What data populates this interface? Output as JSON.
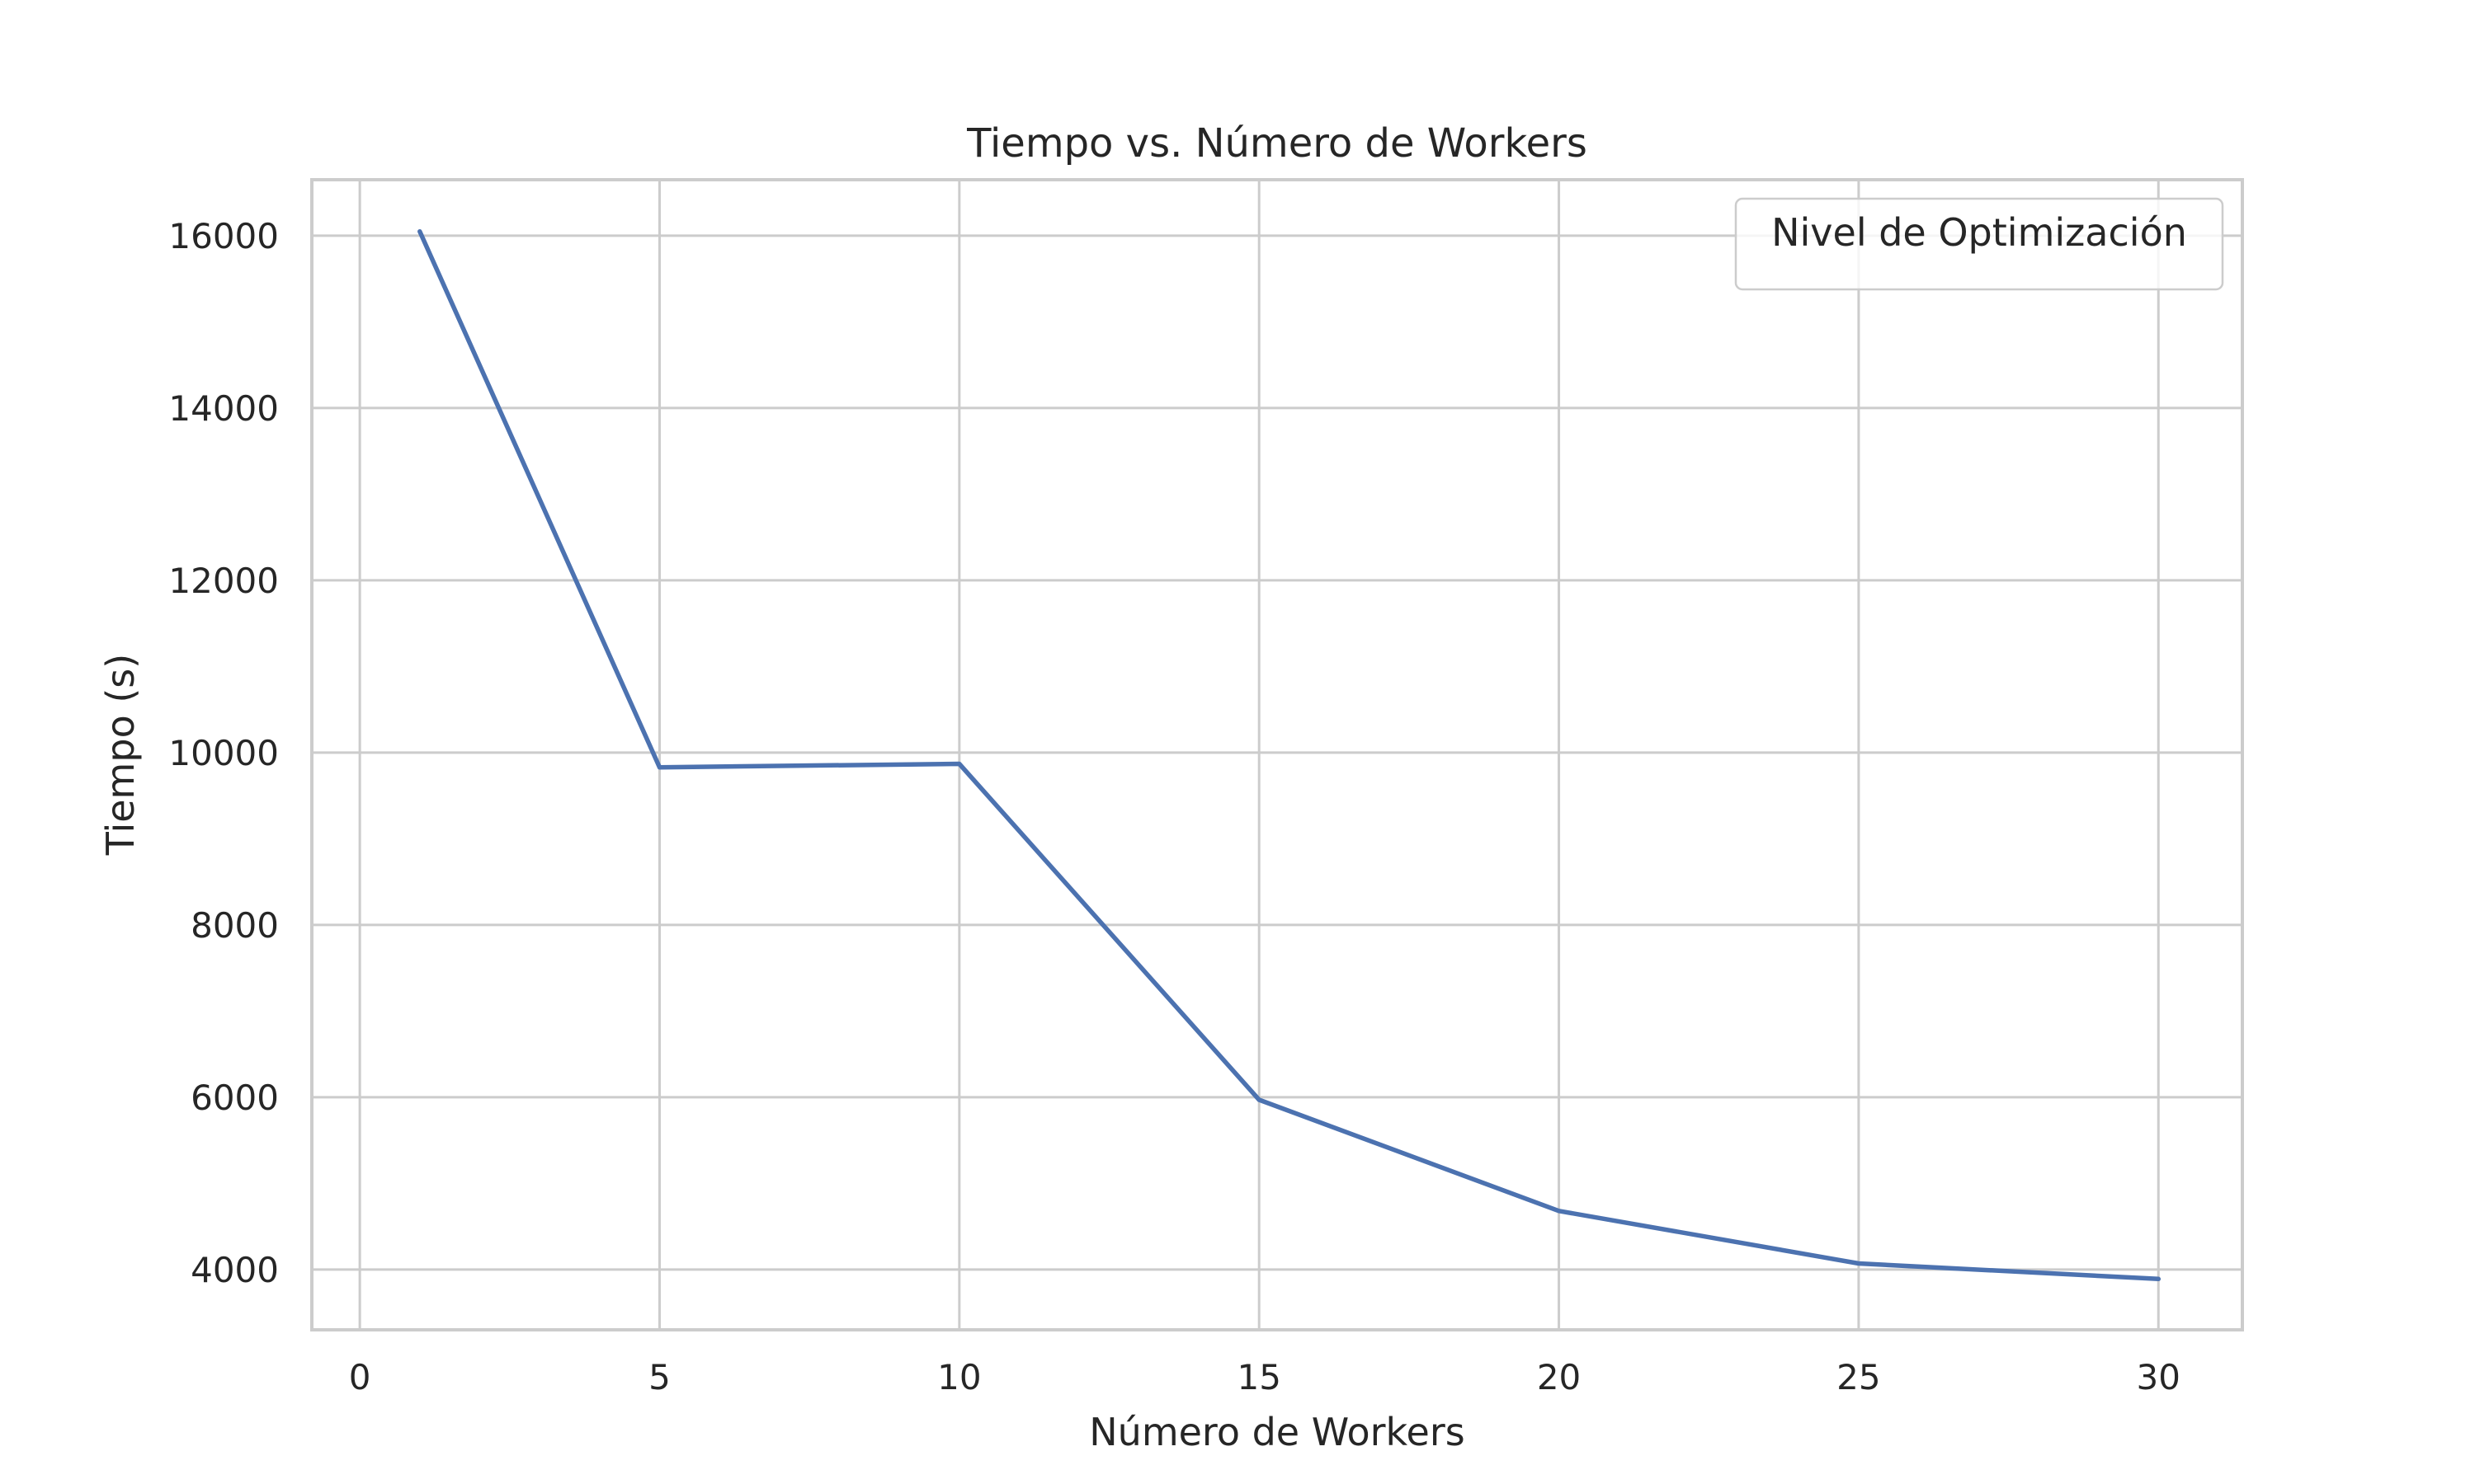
{
  "chart_data": {
    "type": "line",
    "title": "Tiempo vs. Número de Workers",
    "xlabel": "Número de Workers",
    "ylabel": "Tiempo (s)",
    "xlim": [
      -0.8,
      31.4
    ],
    "ylim": [
      3300,
      16650
    ],
    "xticks": [
      0,
      5,
      10,
      15,
      20,
      25,
      30
    ],
    "yticks": [
      4000,
      6000,
      8000,
      10000,
      12000,
      14000,
      16000
    ],
    "grid": true,
    "legend": {
      "title": "Nivel de Optimización",
      "placement": "top-right"
    },
    "series": [
      {
        "color": "#4c72b0",
        "x": [
          1,
          5,
          10,
          15,
          20,
          25,
          30
        ],
        "y": [
          16050,
          9830,
          9870,
          5970,
          4680,
          4070,
          3890
        ]
      }
    ]
  }
}
